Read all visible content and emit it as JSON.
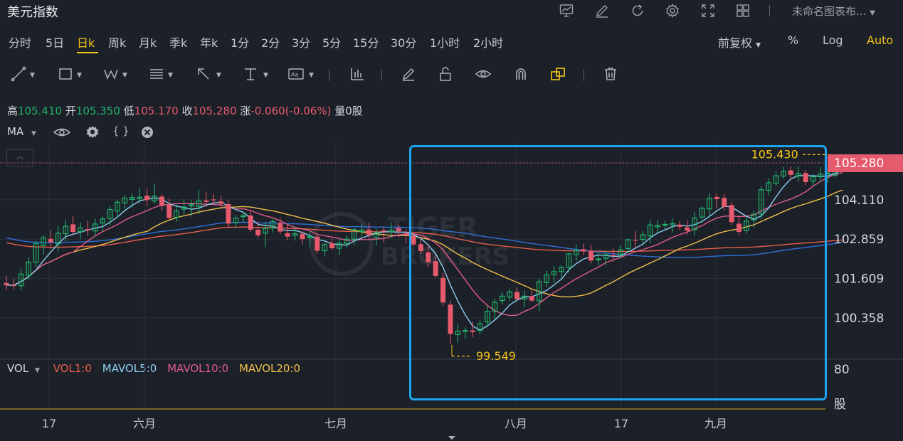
{
  "header": {
    "title": "美元指数",
    "chart_name": "未命名图表布...",
    "icons": [
      "chart-icon",
      "pencil-icon",
      "refresh-icon",
      "settings-icon",
      "fullscreen-icon",
      "layout-grid-icon"
    ]
  },
  "timeframes": [
    "分时",
    "5日",
    "日k",
    "周k",
    "月k",
    "季k",
    "年k",
    "1分",
    "2分",
    "3分",
    "5分",
    "15分",
    "30分",
    "1小时",
    "2小时"
  ],
  "active_timeframe": "日k",
  "right_options": {
    "adjust": "前复权",
    "percent": "%",
    "log": "Log",
    "auto": "Auto"
  },
  "drawing_tools": [
    "trend-line-icon",
    "rectangle-icon",
    "wave-icon",
    "text-lines-icon",
    "arrow-icon",
    "measure-icon",
    "annotation-icon",
    "bar-chart-icon",
    "brush-icon",
    "lock-icon",
    "eye-icon",
    "magnet-icon",
    "layers-icon",
    "trash-icon"
  ],
  "ohlc": {
    "high_label": "高",
    "high": "105.410",
    "open_label": "开",
    "open": "105.350",
    "low_label": "低",
    "low": "105.170",
    "close_label": "收",
    "close": "105.280",
    "change_label": "涨",
    "change": "-0.060(-0.06%)",
    "volume_label": "量",
    "volume": "0股"
  },
  "indicator": {
    "name": "MA"
  },
  "volume_legend": {
    "name": "VOL",
    "vol1": "VOL1:0",
    "mavol5": "MAVOL5:0",
    "mavol10": "MAVOL10:0",
    "mavol20": "MAVOL20:0"
  },
  "colors": {
    "up": "#21b36d",
    "down": "#e65a6e",
    "ma5": "#8ecdf2",
    "ma10": "#e05c8a",
    "ma20": "#f0c04a",
    "ma60": "#2f6fd8",
    "ma120": "#e8604a",
    "highlight": "#1ea4ee",
    "annotation": "#f5c518"
  },
  "chart_data": {
    "type": "candlestick",
    "y_axis_ticks": [
      "105.280",
      "104.110",
      "102.859",
      "101.609",
      "100.358"
    ],
    "ylim": [
      99.2,
      105.9
    ],
    "current_price": "105.280",
    "x_axis_labels": [
      "17",
      "六月",
      "七月",
      "八月",
      "17",
      "九月"
    ],
    "annotations": {
      "high": "105.430",
      "low": "99.549"
    },
    "volume_axis": {
      "tick": "80",
      "unit": "股"
    },
    "candles": [
      {
        "o": 101.47,
        "h": 101.7,
        "l": 101.24,
        "c": 101.4
      },
      {
        "o": 101.4,
        "h": 101.6,
        "l": 101.26,
        "c": 101.39
      },
      {
        "o": 101.38,
        "h": 101.92,
        "l": 101.23,
        "c": 101.75
      },
      {
        "o": 101.71,
        "h": 102.28,
        "l": 101.57,
        "c": 102.13
      },
      {
        "o": 102.12,
        "h": 102.81,
        "l": 101.95,
        "c": 102.72
      },
      {
        "o": 102.66,
        "h": 102.98,
        "l": 102.37,
        "c": 102.9
      },
      {
        "o": 102.87,
        "h": 103.13,
        "l": 102.55,
        "c": 102.76
      },
      {
        "o": 102.71,
        "h": 103.28,
        "l": 102.47,
        "c": 103.05
      },
      {
        "o": 103.03,
        "h": 103.48,
        "l": 102.79,
        "c": 103.27
      },
      {
        "o": 103.33,
        "h": 103.58,
        "l": 103.01,
        "c": 103.09
      },
      {
        "o": 103.1,
        "h": 103.39,
        "l": 102.86,
        "c": 103.22
      },
      {
        "o": 103.18,
        "h": 103.46,
        "l": 102.96,
        "c": 103.14
      },
      {
        "o": 103.12,
        "h": 103.51,
        "l": 102.97,
        "c": 103.34
      },
      {
        "o": 103.37,
        "h": 103.6,
        "l": 103.09,
        "c": 103.5
      },
      {
        "o": 103.52,
        "h": 103.91,
        "l": 103.31,
        "c": 103.8
      },
      {
        "o": 103.75,
        "h": 104.12,
        "l": 103.54,
        "c": 104.03
      },
      {
        "o": 104.01,
        "h": 104.27,
        "l": 103.82,
        "c": 104.16
      },
      {
        "o": 104.12,
        "h": 104.31,
        "l": 103.86,
        "c": 104.18
      },
      {
        "o": 104.14,
        "h": 104.48,
        "l": 103.98,
        "c": 104.19
      },
      {
        "o": 104.24,
        "h": 104.47,
        "l": 103.91,
        "c": 104.1
      },
      {
        "o": 104.07,
        "h": 104.62,
        "l": 103.98,
        "c": 104.22
      },
      {
        "o": 104.21,
        "h": 104.28,
        "l": 103.75,
        "c": 103.91
      },
      {
        "o": 103.95,
        "h": 104.15,
        "l": 103.43,
        "c": 103.53
      },
      {
        "o": 103.55,
        "h": 103.96,
        "l": 103.41,
        "c": 103.76
      },
      {
        "o": 103.81,
        "h": 104.13,
        "l": 103.64,
        "c": 103.88
      },
      {
        "o": 103.91,
        "h": 104.1,
        "l": 103.58,
        "c": 103.96
      },
      {
        "o": 103.9,
        "h": 104.42,
        "l": 103.66,
        "c": 104.07
      },
      {
        "o": 104.09,
        "h": 104.37,
        "l": 103.88,
        "c": 104.04
      },
      {
        "o": 104.12,
        "h": 104.31,
        "l": 103.95,
        "c": 104.1
      },
      {
        "o": 104.06,
        "h": 104.24,
        "l": 103.82,
        "c": 103.98
      },
      {
        "o": 103.97,
        "h": 104.1,
        "l": 103.21,
        "c": 103.35
      },
      {
        "o": 103.38,
        "h": 103.61,
        "l": 103.21,
        "c": 103.53
      },
      {
        "o": 103.58,
        "h": 103.74,
        "l": 103.4,
        "c": 103.6
      },
      {
        "o": 103.61,
        "h": 103.79,
        "l": 103.08,
        "c": 103.16
      },
      {
        "o": 103.16,
        "h": 103.42,
        "l": 102.9,
        "c": 102.98
      },
      {
        "o": 103.05,
        "h": 103.41,
        "l": 102.61,
        "c": 103.2
      },
      {
        "o": 103.21,
        "h": 103.5,
        "l": 103.05,
        "c": 103.42
      },
      {
        "o": 103.38,
        "h": 103.55,
        "l": 103.01,
        "c": 103.1
      },
      {
        "o": 103.05,
        "h": 103.32,
        "l": 102.82,
        "c": 102.94
      },
      {
        "o": 102.98,
        "h": 103.23,
        "l": 102.81,
        "c": 103.03
      },
      {
        "o": 103.03,
        "h": 103.11,
        "l": 102.68,
        "c": 102.86
      },
      {
        "o": 102.92,
        "h": 103.12,
        "l": 102.61,
        "c": 102.94
      },
      {
        "o": 102.94,
        "h": 103.06,
        "l": 102.4,
        "c": 102.49
      },
      {
        "o": 102.49,
        "h": 102.74,
        "l": 102.32,
        "c": 102.69
      },
      {
        "o": 102.73,
        "h": 102.88,
        "l": 102.52,
        "c": 102.57
      },
      {
        "o": 102.57,
        "h": 102.88,
        "l": 102.35,
        "c": 102.73
      },
      {
        "o": 102.72,
        "h": 102.99,
        "l": 102.6,
        "c": 102.86
      },
      {
        "o": 102.86,
        "h": 103.22,
        "l": 102.67,
        "c": 103.16
      },
      {
        "o": 103.1,
        "h": 103.35,
        "l": 102.94,
        "c": 103.15
      },
      {
        "o": 103.16,
        "h": 103.38,
        "l": 102.87,
        "c": 102.99
      },
      {
        "o": 102.91,
        "h": 103.19,
        "l": 102.66,
        "c": 103.07
      },
      {
        "o": 103.14,
        "h": 103.26,
        "l": 102.74,
        "c": 103.1
      },
      {
        "o": 103.09,
        "h": 103.39,
        "l": 102.88,
        "c": 103.15
      },
      {
        "o": 103.21,
        "h": 103.31,
        "l": 102.92,
        "c": 103.11
      },
      {
        "o": 103.04,
        "h": 103.16,
        "l": 102.72,
        "c": 102.98
      },
      {
        "o": 102.96,
        "h": 103.06,
        "l": 102.63,
        "c": 102.69
      },
      {
        "o": 102.7,
        "h": 102.99,
        "l": 102.39,
        "c": 102.48
      },
      {
        "o": 102.44,
        "h": 102.69,
        "l": 101.97,
        "c": 102.13
      },
      {
        "o": 102.16,
        "h": 102.35,
        "l": 101.62,
        "c": 101.69
      },
      {
        "o": 101.63,
        "h": 101.79,
        "l": 100.75,
        "c": 100.85
      },
      {
        "o": 100.78,
        "h": 100.91,
        "l": 99.55,
        "c": 99.85
      },
      {
        "o": 99.83,
        "h": 100.17,
        "l": 99.58,
        "c": 99.94
      },
      {
        "o": 99.93,
        "h": 100.06,
        "l": 99.7,
        "c": 99.96
      },
      {
        "o": 99.96,
        "h": 100.24,
        "l": 99.75,
        "c": 99.91
      },
      {
        "o": 99.96,
        "h": 100.28,
        "l": 99.83,
        "c": 100.17
      },
      {
        "o": 100.23,
        "h": 100.75,
        "l": 100.06,
        "c": 100.57
      },
      {
        "o": 100.56,
        "h": 100.97,
        "l": 100.34,
        "c": 100.86
      },
      {
        "o": 100.91,
        "h": 101.18,
        "l": 100.79,
        "c": 101.05
      },
      {
        "o": 101.02,
        "h": 101.29,
        "l": 100.9,
        "c": 101.19
      },
      {
        "o": 101.18,
        "h": 101.32,
        "l": 100.92,
        "c": 100.96
      },
      {
        "o": 100.96,
        "h": 101.23,
        "l": 100.69,
        "c": 101.05
      },
      {
        "o": 101.05,
        "h": 101.24,
        "l": 100.86,
        "c": 100.91
      },
      {
        "o": 100.9,
        "h": 101.61,
        "l": 100.57,
        "c": 101.51
      },
      {
        "o": 101.48,
        "h": 101.86,
        "l": 101.34,
        "c": 101.73
      },
      {
        "o": 101.74,
        "h": 102.0,
        "l": 101.47,
        "c": 101.83
      },
      {
        "o": 101.83,
        "h": 102.04,
        "l": 101.62,
        "c": 101.96
      },
      {
        "o": 101.96,
        "h": 102.43,
        "l": 101.8,
        "c": 102.39
      },
      {
        "o": 102.37,
        "h": 102.69,
        "l": 102.16,
        "c": 102.5
      },
      {
        "o": 102.54,
        "h": 102.72,
        "l": 102.35,
        "c": 102.47
      },
      {
        "o": 102.49,
        "h": 102.69,
        "l": 102.09,
        "c": 102.18
      },
      {
        "o": 102.22,
        "h": 102.43,
        "l": 102.02,
        "c": 102.23
      },
      {
        "o": 102.25,
        "h": 102.49,
        "l": 102.02,
        "c": 102.36
      },
      {
        "o": 102.35,
        "h": 102.56,
        "l": 102.14,
        "c": 102.32
      },
      {
        "o": 102.38,
        "h": 102.66,
        "l": 102.27,
        "c": 102.52
      },
      {
        "o": 102.56,
        "h": 102.88,
        "l": 102.43,
        "c": 102.84
      },
      {
        "o": 102.84,
        "h": 103.12,
        "l": 102.57,
        "c": 102.83
      },
      {
        "o": 102.85,
        "h": 103.11,
        "l": 102.65,
        "c": 103.0
      },
      {
        "o": 102.96,
        "h": 103.49,
        "l": 102.73,
        "c": 103.31
      },
      {
        "o": 103.25,
        "h": 103.47,
        "l": 103.07,
        "c": 103.3
      },
      {
        "o": 103.31,
        "h": 103.44,
        "l": 103.17,
        "c": 103.33
      },
      {
        "o": 103.31,
        "h": 103.52,
        "l": 103.06,
        "c": 103.35
      },
      {
        "o": 103.32,
        "h": 103.44,
        "l": 103.15,
        "c": 103.25
      },
      {
        "o": 103.23,
        "h": 103.45,
        "l": 103.0,
        "c": 103.13
      },
      {
        "o": 103.16,
        "h": 103.72,
        "l": 102.98,
        "c": 103.53
      },
      {
        "o": 103.56,
        "h": 103.9,
        "l": 103.39,
        "c": 103.84
      },
      {
        "o": 103.82,
        "h": 104.32,
        "l": 103.54,
        "c": 104.16
      },
      {
        "o": 104.2,
        "h": 104.31,
        "l": 103.84,
        "c": 104.13
      },
      {
        "o": 104.17,
        "h": 104.29,
        "l": 103.78,
        "c": 103.88
      },
      {
        "o": 103.94,
        "h": 104.05,
        "l": 103.29,
        "c": 103.4
      },
      {
        "o": 103.35,
        "h": 103.57,
        "l": 102.99,
        "c": 103.09
      },
      {
        "o": 103.13,
        "h": 103.57,
        "l": 103.03,
        "c": 103.43
      },
      {
        "o": 103.47,
        "h": 103.77,
        "l": 103.22,
        "c": 103.65
      },
      {
        "o": 103.66,
        "h": 104.54,
        "l": 103.51,
        "c": 104.43
      },
      {
        "o": 104.41,
        "h": 104.79,
        "l": 104.25,
        "c": 104.65
      },
      {
        "o": 104.63,
        "h": 105.0,
        "l": 104.53,
        "c": 104.87
      },
      {
        "o": 104.86,
        "h": 105.15,
        "l": 104.77,
        "c": 105.01
      },
      {
        "o": 105.04,
        "h": 105.17,
        "l": 104.75,
        "c": 104.9
      },
      {
        "o": 104.86,
        "h": 105.16,
        "l": 104.68,
        "c": 104.94
      },
      {
        "o": 104.96,
        "h": 105.05,
        "l": 104.57,
        "c": 104.67
      },
      {
        "o": 104.7,
        "h": 104.92,
        "l": 104.55,
        "c": 104.84
      },
      {
        "o": 104.84,
        "h": 105.14,
        "l": 104.67,
        "c": 104.92
      },
      {
        "o": 104.96,
        "h": 105.12,
        "l": 104.65,
        "c": 104.96
      },
      {
        "o": 104.89,
        "h": 105.43,
        "l": 104.81,
        "c": 105.35
      },
      {
        "o": 105.35,
        "h": 105.41,
        "l": 105.17,
        "c": 105.28
      }
    ]
  }
}
